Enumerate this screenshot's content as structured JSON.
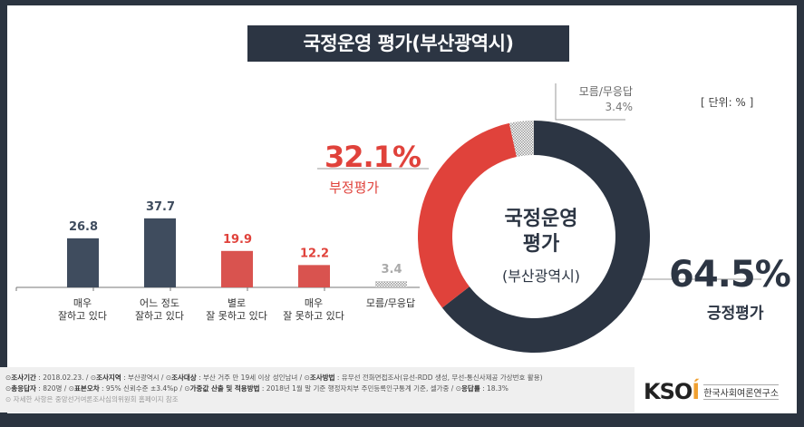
{
  "title": "국정운영 평가(부산광역시)",
  "unit": "[ 단위: % ]",
  "colors": {
    "positive": "#2c3543",
    "negative": "#e0423b",
    "bar_positive": "#3f4c5e",
    "bar_negative": "#d9534f",
    "dk": "#bbbbbb"
  },
  "chart_data": [
    {
      "type": "bar",
      "categories": [
        "매우\n잘하고 있다",
        "어느 정도\n잘하고 있다",
        "별로\n잘 못하고 있다",
        "매우\n잘 못하고 있다",
        "모름/무응답"
      ],
      "values": [
        26.8,
        37.7,
        19.9,
        12.2,
        3.4
      ],
      "value_labels": [
        "26.8",
        "37.7",
        "19.9",
        "12.2",
        "3.4"
      ],
      "groups": [
        "positive",
        "positive",
        "negative",
        "negative",
        "dk"
      ]
    },
    {
      "type": "pie",
      "donut": true,
      "title": "국정운영 평가",
      "subtitle": "(부산광역시)",
      "slices": [
        {
          "label": "긍정평가",
          "value": 64.5,
          "text": "64.5%"
        },
        {
          "label": "부정평가",
          "value": 32.1,
          "text": "32.1%"
        },
        {
          "label": "모름/무응답",
          "value": 3.4,
          "text": "3.4%"
        }
      ]
    }
  ],
  "center": {
    "line1": "국정운영",
    "line2": "평가",
    "line3": "(부산광역시)"
  },
  "footer": {
    "l1": [
      [
        "조사기간",
        " : 2018.02.23.  / "
      ],
      [
        "조사지역",
        " : 부산광역시 / "
      ],
      [
        "조사대상",
        " : 부산 거주 만 19세 이상 성인남녀 / "
      ],
      [
        "조사방법",
        " : 유무선 전화면접조사(유선-RDD 생성, 무선-통신사제공 가상번호 활용)"
      ]
    ],
    "l2": [
      [
        "총응답자",
        " : 820명  / "
      ],
      [
        "표본오차",
        " : 95%  신뢰수준 ±3.4%p / "
      ],
      [
        "가중값 산출 및 적용방법",
        " : 2018년 1월 말 기준 행정자치부 주민등록인구통계 기준, 셀가중 / "
      ],
      [
        "응답률",
        " : 18.3%"
      ]
    ],
    "note": "자세한 사항은 중앙선거여론조사심의위원회 홈페이지 참조"
  },
  "logo": {
    "brand": "KSOI",
    "org": "한국사회여론연구소"
  }
}
